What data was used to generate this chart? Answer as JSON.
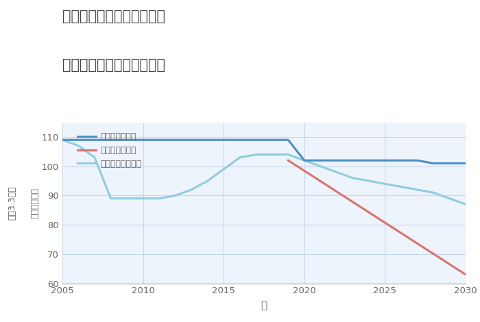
{
  "title_line1": "奈良県磯城郡川西町下永の",
  "title_line2": "中古マンションの価格推移",
  "xlabel": "年",
  "ylabel": "単価（万円）",
  "ylabel2": "平（3.3㎡）",
  "ylim": [
    60,
    115
  ],
  "xlim": [
    2005,
    2030
  ],
  "yticks": [
    60,
    70,
    80,
    90,
    100,
    110
  ],
  "xticks": [
    2005,
    2010,
    2015,
    2020,
    2025,
    2030
  ],
  "bg_color": "#eef4fb",
  "grid_color": "#c5d8ed",
  "good_scenario": {
    "label": "グッドシナリオ",
    "color": "#4a90c4",
    "x": [
      2005,
      2006,
      2007,
      2008,
      2009,
      2010,
      2011,
      2012,
      2013,
      2014,
      2015,
      2016,
      2017,
      2018,
      2019,
      2020,
      2021,
      2022,
      2023,
      2024,
      2025,
      2026,
      2027,
      2028,
      2029,
      2030
    ],
    "y": [
      109,
      109,
      109,
      109,
      109,
      109,
      109,
      109,
      109,
      109,
      109,
      109,
      109,
      109,
      109,
      102,
      102,
      102,
      102,
      102,
      102,
      102,
      102,
      101,
      101,
      101
    ]
  },
  "bad_scenario": {
    "label": "バッドシナリオ",
    "color": "#d9736e",
    "x": [
      2019,
      2030
    ],
    "y": [
      102,
      63
    ]
  },
  "normal_scenario": {
    "label": "ノーマルシナリオ",
    "color": "#90cce0",
    "x": [
      2005,
      2006,
      2007,
      2008,
      2009,
      2010,
      2011,
      2012,
      2013,
      2014,
      2015,
      2016,
      2017,
      2018,
      2019,
      2020,
      2021,
      2022,
      2023,
      2024,
      2025,
      2026,
      2027,
      2028,
      2029,
      2030
    ],
    "y": [
      109,
      107,
      103,
      89,
      89,
      89,
      89,
      90,
      92,
      95,
      99,
      103,
      104,
      104,
      104,
      102,
      100,
      98,
      96,
      95,
      94,
      93,
      92,
      91,
      89,
      87
    ]
  },
  "title_color": "#444444",
  "tick_color": "#666666",
  "label_color": "#666666"
}
